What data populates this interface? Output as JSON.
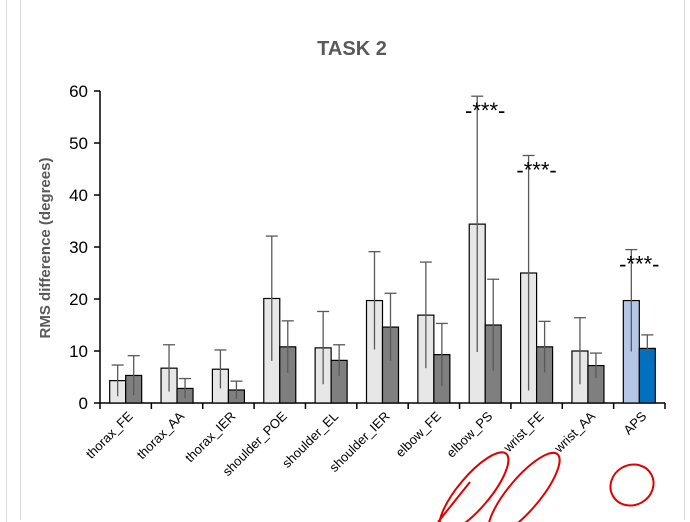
{
  "chart_data": {
    "type": "bar",
    "title": "TASK 2",
    "xlabel": "",
    "ylabel": "RMS difference (degrees)",
    "ylim": [
      0,
      60
    ],
    "yticks": [
      0,
      10,
      20,
      30,
      40,
      50,
      60
    ],
    "grid": false,
    "legend": "none",
    "categories": [
      "thorax_FE",
      "thorax_AA",
      "thorax_IER",
      "shoulder_POE",
      "shoulder_EL",
      "shoulder_IER",
      "elbow_FE",
      "elbow_PS",
      "wrist_FE",
      "wrist_AA",
      "APS"
    ],
    "series": [
      {
        "values": [
          4.3,
          6.7,
          6.5,
          20.1,
          10.6,
          19.7,
          16.9,
          34.4,
          25.0,
          10.0,
          19.7
        ],
        "error": [
          3.0,
          4.5,
          3.7,
          12.0,
          7.0,
          9.4,
          10.2,
          24.6,
          22.6,
          6.4,
          9.8
        ],
        "colors": [
          "#e7e7e7",
          "#e7e7e7",
          "#e7e7e7",
          "#e7e7e7",
          "#e7e7e7",
          "#e7e7e7",
          "#e7e7e7",
          "#e7e7e7",
          "#e7e7e7",
          "#e7e7e7",
          "#b4c7e7"
        ]
      },
      {
        "values": [
          5.3,
          2.8,
          2.5,
          10.8,
          8.2,
          14.6,
          9.3,
          15.0,
          10.8,
          7.2,
          10.5
        ],
        "error": [
          3.8,
          1.9,
          1.7,
          5.0,
          3.0,
          6.5,
          6.0,
          8.8,
          4.9,
          2.4,
          2.6
        ],
        "colors": [
          "#7f7f7f",
          "#7f7f7f",
          "#7f7f7f",
          "#7f7f7f",
          "#7f7f7f",
          "#7f7f7f",
          "#7f7f7f",
          "#7f7f7f",
          "#7f7f7f",
          "#7f7f7f",
          "#0070c0"
        ]
      }
    ],
    "annotations": [
      {
        "category": "elbow_PS",
        "text": "-***-"
      },
      {
        "category": "wrist_FE",
        "text": "-***-"
      },
      {
        "category": "APS",
        "text": "-***-"
      }
    ]
  },
  "colors": {
    "axis": "#000000",
    "title": "#595959",
    "circle_marks": "#e00000"
  }
}
